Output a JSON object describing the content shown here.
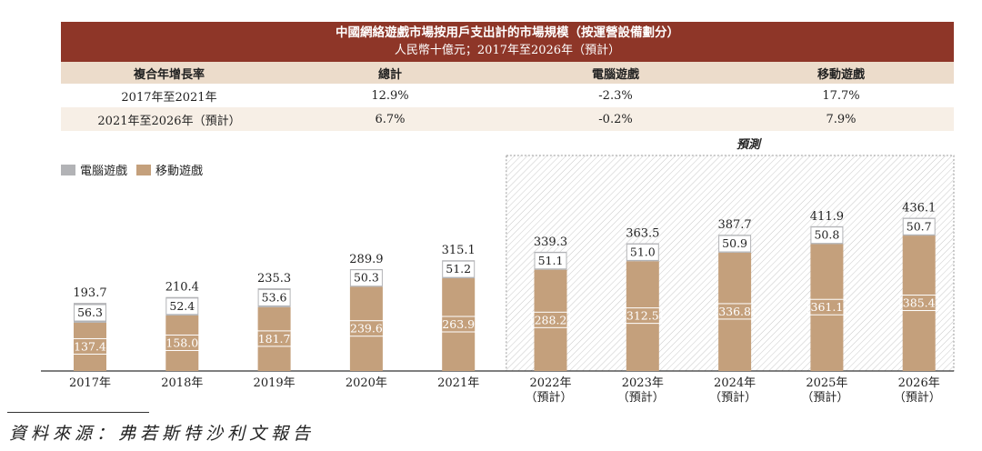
{
  "table": {
    "title": "中國網絡遊戲市場按用戶支出計的市場規模（按運營設備劃分）",
    "subtitle": "人民幣十億元；2017年至2026年（預計）",
    "headers": [
      "複合年增長率",
      "總計",
      "電腦遊戲",
      "移動遊戲"
    ],
    "rows": [
      [
        "2017年至2021年",
        "12.9%",
        "-2.3%",
        "17.7%"
      ],
      [
        "2021年至2026年（預計）",
        "6.7%",
        "-0.2%",
        "7.9%"
      ]
    ]
  },
  "chart_data": {
    "type": "bar",
    "stacked": true,
    "categories": [
      "2017年",
      "2018年",
      "2019年",
      "2020年",
      "2021年",
      "2022年",
      "2023年",
      "2024年",
      "2025年",
      "2026年"
    ],
    "category_notes": [
      "",
      "",
      "",
      "",
      "",
      "（預計）",
      "（預計）",
      "（預計）",
      "（預計）",
      "（預計）"
    ],
    "series": [
      {
        "name": "移動遊戲",
        "color": "#c4a07c",
        "values": [
          137.4,
          158.0,
          181.7,
          239.6,
          263.9,
          288.2,
          312.5,
          336.8,
          361.1,
          385.4
        ]
      },
      {
        "name": "電腦遊戲",
        "color": "#b2b3b6",
        "values": [
          56.3,
          52.4,
          53.6,
          50.3,
          51.2,
          51.1,
          51.0,
          50.9,
          50.8,
          50.7
        ]
      }
    ],
    "totals": [
      "193.7",
      "210.4",
      "235.3",
      "289.9",
      "315.1",
      "339.3",
      "363.5",
      "387.7",
      "411.9",
      "436.1"
    ],
    "forecast_label": "預測",
    "forecast_start_index": 5,
    "ylim": [
      0,
      436.1
    ]
  },
  "legend": [
    {
      "label": "電腦遊戲",
      "color": "#b2b3b6"
    },
    {
      "label": "移動遊戲",
      "color": "#c4a07c"
    }
  ],
  "source": "資料來源：弗若斯特沙利文報告"
}
